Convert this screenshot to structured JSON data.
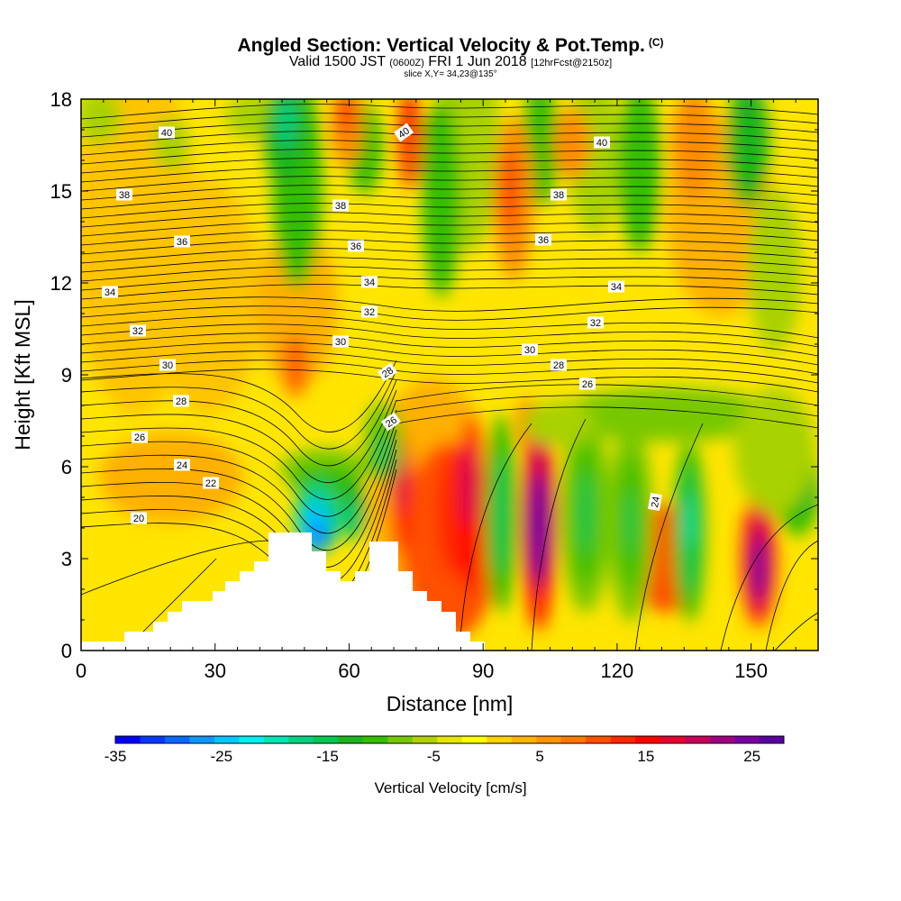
{
  "title": {
    "main": "Angled Section: Vertical Velocity & Pot.Temp.",
    "main_unit": "(C)",
    "valid_prefix": "Valid 1500 JST",
    "valid_utc": "(0600Z)",
    "valid_date": "FRI 1 Jun 2018",
    "valid_fcst": "[12hrFcst@2150z]",
    "slice": "slice X,Y= 34,23@135°"
  },
  "chart_data": {
    "type": "heatmap",
    "xlabel": "Distance [nm]",
    "ylabel": "Height [Kft MSL]",
    "xlim": [
      0,
      165
    ],
    "ylim": [
      0,
      18
    ],
    "x_ticks": [
      "0",
      "30",
      "60",
      "90",
      "120",
      "150"
    ],
    "y_ticks": [
      "0",
      "3",
      "6",
      "9",
      "12",
      "15",
      "18"
    ],
    "colorbar": {
      "label": "Vertical Velocity [cm/s]",
      "tick_labels": [
        "-35",
        "-25",
        "-15",
        "-5",
        "5",
        "15",
        "25"
      ],
      "range": [
        -35,
        28
      ],
      "colors": [
        "#0000ff",
        "#0a37ff",
        "#0b68ff",
        "#0c98ff",
        "#00c8ff",
        "#00f0f0",
        "#00e6b4",
        "#00d282",
        "#00c850",
        "#1fb41f",
        "#36be00",
        "#78c800",
        "#b4d200",
        "#e6e600",
        "#ffff00",
        "#ffd200",
        "#ffb400",
        "#ff9600",
        "#ff7800",
        "#ff5000",
        "#ff2800",
        "#ff0000",
        "#e6002e",
        "#c8005a",
        "#a00082",
        "#7800a0",
        "#5a00a0"
      ]
    },
    "contour_labels": [
      "40",
      "40",
      "40",
      "38",
      "38",
      "38",
      "36",
      "36",
      "36",
      "34",
      "34",
      "34",
      "32",
      "32",
      "32",
      "30",
      "30",
      "30",
      "28",
      "28",
      "28",
      "26",
      "26",
      "26",
      "24",
      "24",
      "22",
      "20"
    ]
  }
}
